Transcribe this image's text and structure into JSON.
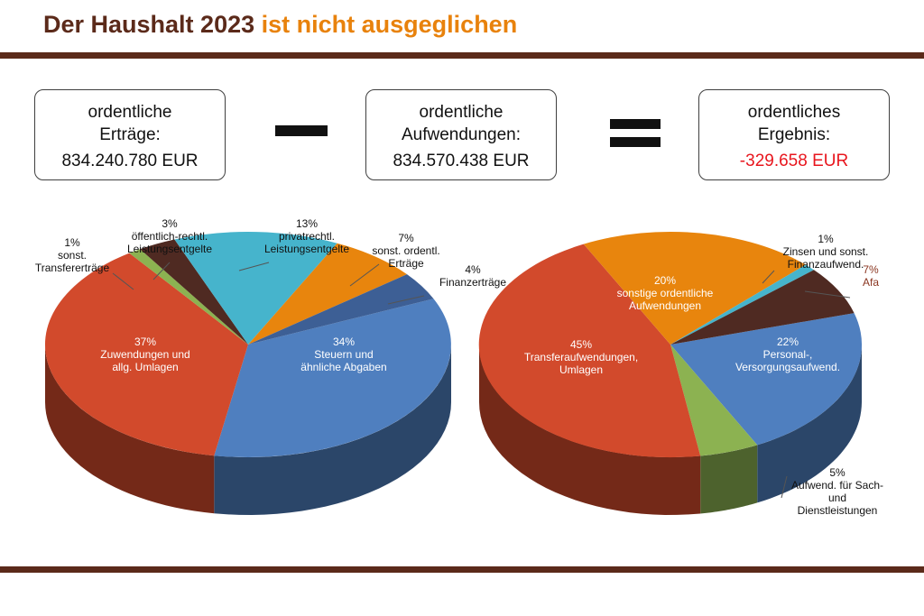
{
  "title": {
    "main": "Der Haushalt 2023",
    "accent": "ist nicht ausgeglichen"
  },
  "summary": {
    "ertraege": {
      "label_line1": "ordentliche",
      "label_line2": "Erträge:",
      "value": "834.240.780 EUR"
    },
    "aufwendungen": {
      "label_line1": "ordentliche",
      "label_line2": "Aufwendungen:",
      "value": "834.570.438 EUR"
    },
    "ergebnis": {
      "label_line1": "ordentliches",
      "label_line2": "Ergebnis:",
      "value": "-329.658 EUR"
    }
  },
  "colors": {
    "brown": "#5b2a1a",
    "accent": "#e8820c",
    "negative": "#e8161e",
    "red": "#d24a2c",
    "blue": "#4f7fbf",
    "orange": "#e8850d",
    "cyan": "#46b4cc",
    "dark_brown": "#4f2a22",
    "green": "#8cb251"
  },
  "chart_data": [
    {
      "type": "pie",
      "slices": [
        {
          "pct": "34%",
          "value": 34,
          "lines": [
            "Steuern und",
            "ähnliche Abgaben"
          ],
          "color": "#4f7fbf"
        },
        {
          "pct": "37%",
          "value": 37,
          "lines": [
            "Zuwendungen und",
            "allg. Umlagen"
          ],
          "color": "#d24a2c"
        },
        {
          "pct": "1%",
          "value": 1,
          "lines": [
            "sonst.",
            "Transfererträge"
          ],
          "color": "#8cb251"
        },
        {
          "pct": "3%",
          "value": 3,
          "lines": [
            "öffentlich-rechtl.",
            "Leistungsentgelte"
          ],
          "color": "#4f2a22"
        },
        {
          "pct": "13%",
          "value": 13,
          "lines": [
            "privatrechtl.",
            "Leistungsentgelte"
          ],
          "color": "#46b4cc"
        },
        {
          "pct": "7%",
          "value": 7,
          "lines": [
            "sonst. ordentl.",
            "Erträge"
          ],
          "color": "#e8850d"
        },
        {
          "pct": "4%",
          "value": 4,
          "lines": [
            "Finanzerträge"
          ],
          "color": "#3d5f95"
        }
      ]
    },
    {
      "type": "pie",
      "slices": [
        {
          "pct": "22%",
          "value": 22,
          "lines": [
            "Personal-,",
            "Versorgungsaufwend."
          ],
          "color": "#4f7fbf"
        },
        {
          "pct": "5%",
          "value": 5,
          "lines": [
            "Aufwend. für Sach-",
            "und",
            "Dienstleistungen"
          ],
          "color": "#8cb251"
        },
        {
          "pct": "45%",
          "value": 45,
          "lines": [
            "Transferaufwendungen,",
            "Umlagen"
          ],
          "color": "#d24a2c"
        },
        {
          "pct": "20%",
          "value": 20,
          "lines": [
            "sonstige ordentliche",
            "Aufwendungen"
          ],
          "color": "#e8850d"
        },
        {
          "pct": "1%",
          "value": 1,
          "lines": [
            "Zinsen und sonst.",
            "Finanzaufwend."
          ],
          "color": "#46b4cc"
        },
        {
          "pct": "7%",
          "value": 7,
          "lines": [
            "Afa"
          ],
          "color": "#4f2a22"
        }
      ]
    }
  ]
}
